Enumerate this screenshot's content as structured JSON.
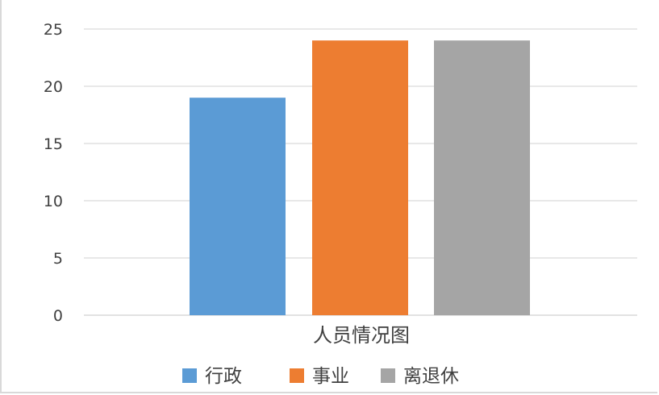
{
  "chart_data": {
    "type": "bar",
    "categories": [
      "人员情况图"
    ],
    "series": [
      {
        "name": "行政",
        "values": [
          19
        ],
        "color": "#5b9bd5"
      },
      {
        "name": "事业",
        "values": [
          24
        ],
        "color": "#ed7d31"
      },
      {
        "name": "离退休",
        "values": [
          24
        ],
        "color": "#a5a5a5"
      }
    ],
    "ylim": [
      0,
      25
    ],
    "yticks": [
      0,
      5,
      10,
      15,
      20,
      25
    ],
    "grid": true,
    "legend_position": "bottom",
    "gridline_color": "#d9d9d9"
  }
}
